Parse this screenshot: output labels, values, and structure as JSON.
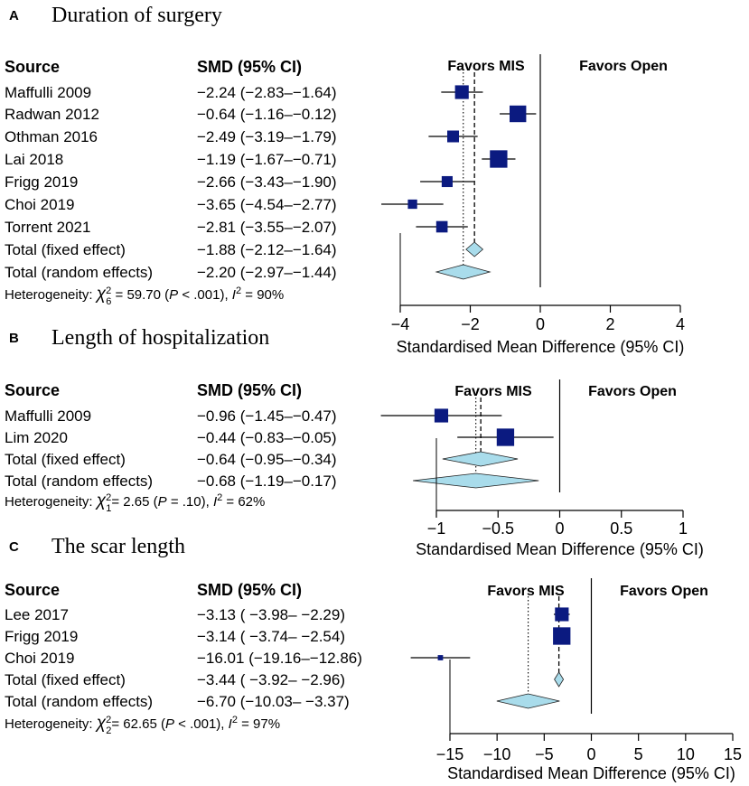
{
  "chart_data": [
    {
      "type": "forest",
      "panel": "A",
      "title": "Duration of surgery",
      "headers": {
        "source": "Source",
        "smd": "SMD (95% CI)"
      },
      "favors": {
        "left": "Favors MIS",
        "right": "Favors Open"
      },
      "xlabel": "Standardised Mean Difference (95% CI)",
      "xlim": [
        -4,
        4
      ],
      "ticks": [
        -4,
        -2,
        0,
        2,
        4
      ],
      "tick_labels": [
        "−4",
        "−2",
        "0",
        "2",
        "4"
      ],
      "studies": [
        {
          "source": "Maffulli 2009",
          "ci_text": "−2.24 (−2.83–−1.64)",
          "smd": -2.24,
          "lower": -2.83,
          "upper": -1.64,
          "weight": 0.62
        },
        {
          "source": "Radwan 2012",
          "ci_text": "−0.64 (−1.16–−0.12)",
          "smd": -0.64,
          "lower": -1.16,
          "upper": -0.12,
          "weight": 0.8
        },
        {
          "source": "Othman 2016",
          "ci_text": "−2.49 (−3.19–−1.79)",
          "smd": -2.49,
          "lower": -3.19,
          "upper": -1.79,
          "weight": 0.5
        },
        {
          "source": "Lai 2018",
          "ci_text": "−1.19 (−1.67–−0.71)",
          "smd": -1.19,
          "lower": -1.67,
          "upper": -0.71,
          "weight": 0.85
        },
        {
          "source": "Frigg 2019",
          "ci_text": "−2.66 (−3.43–−1.90)",
          "smd": -2.66,
          "lower": -3.43,
          "upper": -1.9,
          "weight": 0.45
        },
        {
          "source": "Choi 2019",
          "ci_text": "−3.65 (−4.54–−2.77)",
          "smd": -3.65,
          "lower": -4.54,
          "upper": -2.77,
          "weight": 0.35
        },
        {
          "source": "Torrent 2021",
          "ci_text": "−2.81 (−3.55–−2.07)",
          "smd": -2.81,
          "lower": -3.55,
          "upper": -2.07,
          "weight": 0.48
        }
      ],
      "totals": [
        {
          "source": "Total (fixed effect)",
          "ci_text": "−1.88 (−2.12–−1.64)",
          "smd": -1.88,
          "lower": -2.12,
          "upper": -1.64
        },
        {
          "source": "Total (random effects)",
          "ci_text": "−2.20 (−2.97–−1.44)",
          "smd": -2.2,
          "lower": -2.97,
          "upper": -1.44
        }
      ],
      "heterogeneity": {
        "prefix": "Heterogeneity: ",
        "chi": "χ",
        "sup": "2",
        "sub": "6",
        "stat": " = 59.70 (",
        "p_italic": "P",
        "p_rest": " < .001), ",
        "i_italic": "I",
        "i_sup": "2",
        "i_rest": " = 90%"
      }
    },
    {
      "type": "forest",
      "panel": "B",
      "title": "Length of hospitalization",
      "headers": {
        "source": "Source",
        "smd": "SMD (95% CI)"
      },
      "favors": {
        "left": "Favors MIS",
        "right": "Favors Open"
      },
      "xlabel": "Standardised Mean Difference (95% CI)",
      "xlim": [
        -1,
        1
      ],
      "ticks": [
        -1,
        -0.5,
        0,
        0.5,
        1
      ],
      "tick_labels": [
        "−1",
        "−0.5",
        "0",
        "0.5",
        "1"
      ],
      "studies": [
        {
          "source": "Maffulli 2009",
          "ci_text": "−0.96 (−1.45–−0.47)",
          "smd": -0.96,
          "lower": -1.45,
          "upper": -0.47,
          "weight": 0.62
        },
        {
          "source": "Lim 2020",
          "ci_text": "−0.44 (−0.83–−0.05)",
          "smd": -0.44,
          "lower": -0.83,
          "upper": -0.05,
          "weight": 0.85
        }
      ],
      "totals": [
        {
          "source": "Total (fixed effect)",
          "ci_text": "−0.64 (−0.95–−0.34)",
          "smd": -0.64,
          "lower": -0.95,
          "upper": -0.34
        },
        {
          "source": "Total (random effects)",
          "ci_text": "−0.68 (−1.19–−0.17)",
          "smd": -0.68,
          "lower": -1.19,
          "upper": -0.17
        }
      ],
      "heterogeneity": {
        "prefix": "Heterogeneity: ",
        "chi": "χ",
        "sup": "2",
        "sub": "1",
        "stat": "= 2.65 (",
        "p_italic": "P",
        "p_rest": " = .10), ",
        "i_italic": "I",
        "i_sup": "2",
        "i_rest": " = 62%"
      }
    },
    {
      "type": "forest",
      "panel": "C",
      "title": "The scar length",
      "headers": {
        "source": "Source",
        "smd": "SMD (95% CI)"
      },
      "favors": {
        "left": "Favors MIS",
        "right": "Favors Open"
      },
      "xlabel": "Standardised Mean Difference (95% CI)",
      "xlim": [
        -15,
        15
      ],
      "ticks": [
        -15,
        -10,
        -5,
        0,
        5,
        10,
        15
      ],
      "tick_labels": [
        "−15",
        "−10",
        "−5",
        "0",
        "5",
        "10",
        "15"
      ],
      "studies": [
        {
          "source": "Lee 2017",
          "ci_text": "−3.13 ( −3.98– −2.29)",
          "smd": -3.13,
          "lower": -3.98,
          "upper": -2.29,
          "weight": 0.62
        },
        {
          "source": "Frigg 2019",
          "ci_text": "−3.14 ( −3.74– −2.54)",
          "smd": -3.14,
          "lower": -3.74,
          "upper": -2.54,
          "weight": 0.85
        },
        {
          "source": "Choi 2019",
          "ci_text": "−16.01 (−19.16–−12.86)",
          "smd": -16.01,
          "lower": -19.16,
          "upper": -12.86,
          "weight": 0.1
        }
      ],
      "totals": [
        {
          "source": "Total (fixed effect)",
          "ci_text": "−3.44 ( −3.92– −2.96)",
          "smd": -3.44,
          "lower": -3.92,
          "upper": -2.96
        },
        {
          "source": "Total (random effects)",
          "ci_text": "−6.70 (−10.03– −3.37)",
          "smd": -6.7,
          "lower": -10.03,
          "upper": -3.37
        }
      ],
      "heterogeneity": {
        "prefix": "Heterogeneity: ",
        "chi": "χ",
        "sup": "2",
        "sub": "2",
        "stat": "= 62.65 (",
        "p_italic": "P",
        "p_rest": " < .001), ",
        "i_italic": "I",
        "i_sup": "2",
        "i_rest": " = 97%"
      }
    }
  ],
  "colors": {
    "square": "#0b1a80",
    "diamond_fill": "#a9dceb",
    "diamond_stroke": "#1f1f1f",
    "line": "#000000",
    "text": "#000000"
  }
}
